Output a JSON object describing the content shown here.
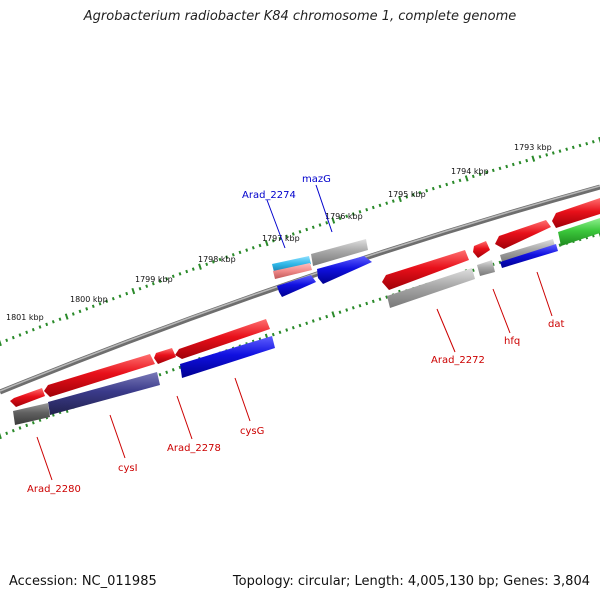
{
  "title": "Agrobacterium radiobacter K84 chromosome 1, complete genome",
  "footer": {
    "accession": "Accession: NC_011985",
    "summary": "Topology: circular; Length: 4,005,130 bp; Genes: 3,804"
  },
  "colors": {
    "red": "#e8101a",
    "blue": "#1010e0",
    "navy": "#3a3a8a",
    "gray": "#a8a8a8",
    "darkgray": "#606060",
    "green": "#3cc83c",
    "cyan": "#30b8e8",
    "pink": "#f08a8a",
    "tick": "#2a8a2a",
    "label_red": "#cc0000",
    "label_blue": "#0000cc"
  },
  "kbp_labels": [
    "1793 kbp",
    "1794 kbp",
    "1795 kbp",
    "1796 kbp",
    "1797 kbp",
    "1798 kbp",
    "1799 kbp",
    "1800 kbp",
    "1801 kbp"
  ],
  "gene_labels": [
    {
      "text": "mazG",
      "color": "blue"
    },
    {
      "text": "Arad_2274",
      "color": "blue"
    },
    {
      "text": "Arad_2272",
      "color": "red"
    },
    {
      "text": "hfq",
      "color": "red"
    },
    {
      "text": "dat",
      "color": "red"
    },
    {
      "text": "Arad_2280",
      "color": "red"
    },
    {
      "text": "cysI",
      "color": "red"
    },
    {
      "text": "Arad_2278",
      "color": "red"
    },
    {
      "text": "cysG",
      "color": "red"
    }
  ]
}
